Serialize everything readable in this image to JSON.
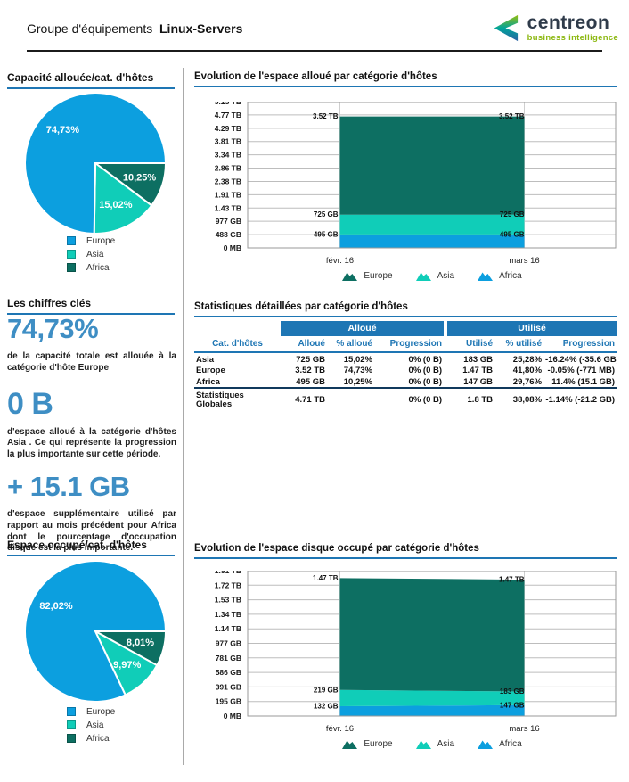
{
  "header": {
    "title_prefix": "Groupe d'équipements",
    "group_name": "Linux-Servers",
    "logo_text": "centreon",
    "logo_tagline": "business intelligence"
  },
  "key_figures": {
    "title": "Les chiffres clés",
    "items": [
      {
        "value": "74,73%",
        "before": "de la capacité totale est allouée à la catégorie d'hôte  ",
        "strong": "Europe",
        "after": ""
      },
      {
        "value": "0 B",
        "before": "d'espace alloué à la catégorie d'hôtes ",
        "strong": "Asia",
        "after": " . Ce qui représente la progression la plus importante sur cette période."
      },
      {
        "value": "+ 15.1 GB",
        "before": "d'espace supplémentaire utilisé par rapport au mois précédent pour ",
        "strong": "Africa",
        "after": " dont le pourcentage d'occupation disque est la plus importante."
      }
    ]
  },
  "colors": {
    "accent_blue": "#1e76b4",
    "big_number_blue": "#3e8ec4",
    "europe_pie": "#0c9fdf",
    "asia": "#10cdb8",
    "africa_dark": "#0d6f62",
    "totals_rule": "#10395c"
  },
  "chart_data": [
    {
      "id": "pie_allocated",
      "type": "pie",
      "title": "Capacité allouée/cat. d'hôtes",
      "labels": [
        "Europe",
        "Asia",
        "Africa"
      ],
      "values": [
        74.73,
        15.02,
        10.25
      ],
      "value_labels": [
        "74,73%",
        "15,02%",
        "10,25%"
      ],
      "colors": [
        "#0c9fdf",
        "#10cdb8",
        "#0d6f62"
      ],
      "start_angle_deg": 0,
      "draw_order": [
        2,
        1,
        0
      ],
      "legend_position": "bottom"
    },
    {
      "id": "area_allocated",
      "type": "area",
      "title": "Evolution de l'espace alloué par catégorie d'hôtes",
      "x": [
        "févr. 16",
        "mars 16"
      ],
      "y_ticks_top_to_bottom": [
        "5.25 TB",
        "4.77 TB",
        "4.29 TB",
        "3.81 TB",
        "3.34 TB",
        "2.86 TB",
        "2.38 TB",
        "1.91 TB",
        "1.43 TB",
        "977 GB",
        "488 GB",
        "0 MB"
      ],
      "y_max_gb": 5368,
      "stack_bottom_to_top": [
        {
          "name": "Africa",
          "color": "#0c9fdf",
          "values_gb": [
            495,
            495
          ],
          "point_labels": [
            "495 GB",
            "495 GB"
          ]
        },
        {
          "name": "Asia",
          "color": "#10cdb8",
          "values_gb": [
            725,
            725
          ],
          "point_labels": [
            "725 GB",
            "725 GB"
          ]
        },
        {
          "name": "Europe",
          "color": "#0d6f62",
          "values_gb": [
            3604,
            3604
          ],
          "point_labels": [
            "3.52 TB",
            "3.52 TB"
          ]
        }
      ],
      "legend": [
        "Europe",
        "Asia",
        "Africa"
      ],
      "legend_colors": [
        "#0d6f62",
        "#10cdb8",
        "#0c9fdf"
      ],
      "grid": true,
      "legend_position": "bottom"
    },
    {
      "id": "stats_table",
      "type": "table",
      "title": "Statistiques détaillées par catégorie d'hôtes",
      "group_headers": [
        "",
        "Alloué",
        "Utilisé"
      ],
      "columns": [
        "Cat. d'hôtes",
        "Alloué",
        "% alloué",
        "Progression",
        "Utilisé",
        "% utilisé",
        "Progression"
      ],
      "rows": [
        [
          "Asia",
          "725 GB",
          "15,02%",
          "0% (0 B)",
          "183 GB",
          "25,28%",
          "-16.24% (-35.6 GB)"
        ],
        [
          "Europe",
          "3.52 TB",
          "74,73%",
          "0% (0 B)",
          "1.47 TB",
          "41,80%",
          "-0.05% (-771 MB)"
        ],
        [
          "Africa",
          "495 GB",
          "10,25%",
          "0% (0 B)",
          "147 GB",
          "29,76%",
          "11.4% (15.1 GB)"
        ]
      ],
      "totals_row": [
        "Statistiques Globales",
        "4.71 TB",
        "",
        "0% (0 B)",
        "1.8 TB",
        "38,08%",
        "-1.14% (-21.2 GB)"
      ]
    },
    {
      "id": "pie_used",
      "type": "pie",
      "title": "Espace occupé/cat. d'hôtes",
      "labels": [
        "Europe",
        "Asia",
        "Africa"
      ],
      "values": [
        82.02,
        9.97,
        8.01
      ],
      "value_labels": [
        "82,02%",
        "9,97%",
        "8,01%"
      ],
      "colors": [
        "#0c9fdf",
        "#10cdb8",
        "#0d6f62"
      ],
      "start_angle_deg": 0,
      "draw_order": [
        2,
        1,
        0
      ],
      "legend_position": "bottom"
    },
    {
      "id": "area_used",
      "type": "area",
      "title": "Evolution de l'espace disque occupé par catégorie d'hôtes",
      "x": [
        "févr. 16",
        "mars 16"
      ],
      "y_ticks_top_to_bottom": [
        "1.91 TB",
        "1.72 TB",
        "1.53 TB",
        "1.34 TB",
        "1.14 TB",
        "977 GB",
        "781 GB",
        "586 GB",
        "391 GB",
        "195 GB",
        "0 MB"
      ],
      "y_max_gb": 1956,
      "stack_bottom_to_top": [
        {
          "name": "Africa",
          "color": "#0c9fdf",
          "values_gb": [
            132,
            147
          ],
          "point_labels": [
            "132 GB",
            "147 GB"
          ]
        },
        {
          "name": "Asia",
          "color": "#10cdb8",
          "values_gb": [
            219,
            183
          ],
          "point_labels": [
            "219 GB",
            "183 GB"
          ]
        },
        {
          "name": "Europe",
          "color": "#0d6f62",
          "values_gb": [
            1505,
            1505
          ],
          "point_labels": [
            "1.47 TB",
            "1.47 TB"
          ]
        }
      ],
      "legend": [
        "Europe",
        "Asia",
        "Africa"
      ],
      "legend_colors": [
        "#0d6f62",
        "#10cdb8",
        "#0c9fdf"
      ],
      "grid": true,
      "legend_position": "bottom"
    }
  ]
}
